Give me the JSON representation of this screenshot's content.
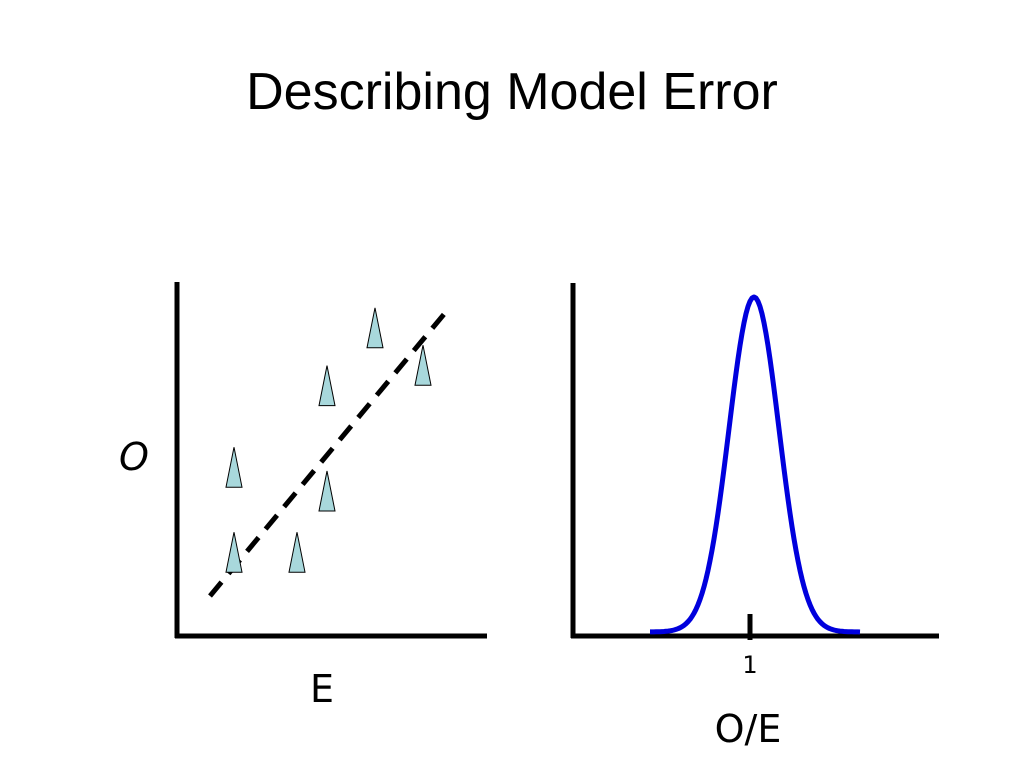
{
  "slide": {
    "title": "Describing Model Error"
  },
  "colors": {
    "marker_fill": "#a8d8dc",
    "marker_stroke": "#000000",
    "curve": "#0000dd",
    "axes": "#000000"
  },
  "scatter_panel": {
    "y_label": "O",
    "x_label": "E"
  },
  "distribution_panel": {
    "tick_label": "1",
    "x_label": "O/E"
  },
  "chart_data": [
    {
      "type": "scatter",
      "title": "",
      "xlabel": "E",
      "ylabel": "O",
      "xlim": [
        0,
        10
      ],
      "ylim": [
        0,
        10
      ],
      "ticks": false,
      "marker": "triangle",
      "points": [
        {
          "x": 1.8,
          "y": 1.7
        },
        {
          "x": 1.8,
          "y": 4.2
        },
        {
          "x": 3.9,
          "y": 1.7
        },
        {
          "x": 4.9,
          "y": 3.5
        },
        {
          "x": 4.9,
          "y": 6.6
        },
        {
          "x": 6.5,
          "y": 8.3
        },
        {
          "x": 8.1,
          "y": 7.2
        }
      ],
      "reference_line": {
        "style": "dashed",
        "from": {
          "x": 1.0,
          "y": 1.0
        },
        "to": {
          "x": 9.0,
          "y": 9.5
        }
      }
    },
    {
      "type": "line",
      "title": "",
      "xlabel": "O/E",
      "ylabel": "",
      "curve": "bell",
      "peak_at": 1,
      "tick_labels": [
        "1"
      ]
    }
  ]
}
